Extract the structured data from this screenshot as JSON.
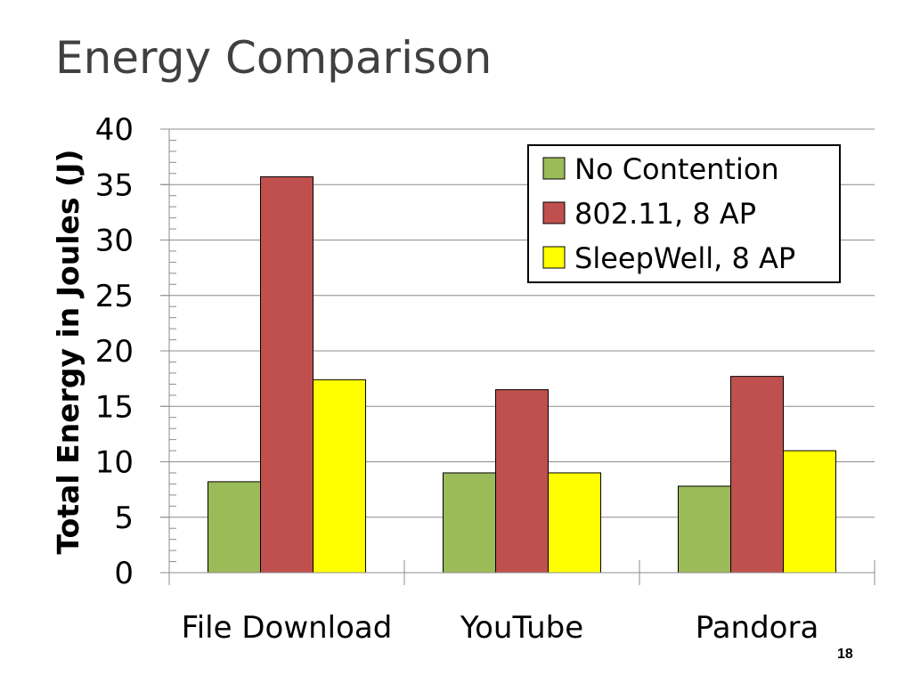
{
  "slide": {
    "title": "Energy Comparison",
    "page_number": "18"
  },
  "chart_data": {
    "type": "bar",
    "title": "",
    "xlabel": "",
    "ylabel": "Total Energy in Joules (J)",
    "ylim": [
      0,
      40
    ],
    "yticks": [
      0,
      5,
      10,
      15,
      20,
      25,
      30,
      35,
      40
    ],
    "categories": [
      "File Download",
      "YouTube",
      "Pandora"
    ],
    "series": [
      {
        "name": "No Contention",
        "color": "#9BBB59",
        "values": [
          8.2,
          9.0,
          7.8
        ]
      },
      {
        "name": "802.11, 8 AP",
        "color": "#C0504D",
        "values": [
          35.7,
          16.5,
          17.7
        ]
      },
      {
        "name": "SleepWell, 8 AP",
        "color": "#FFFF00",
        "values": [
          17.4,
          9.0,
          11.0
        ]
      }
    ],
    "grid": true,
    "legend_position": "top-right"
  }
}
